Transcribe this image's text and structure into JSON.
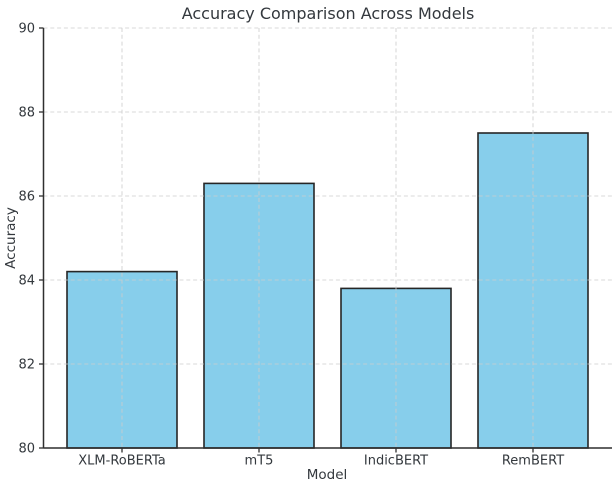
{
  "figure": {
    "background": "#ffffff"
  },
  "chart_data": {
    "type": "bar",
    "title": "Accuracy Comparison Across Models",
    "xlabel": "Model",
    "ylabel": "Accuracy",
    "categories": [
      "XLM-RoBERTa",
      "mT5",
      "IndicBERT",
      "RemBERT"
    ],
    "values": [
      84.2,
      86.3,
      83.8,
      87.5
    ],
    "ylim": [
      80,
      90
    ],
    "yticks": [
      80,
      82,
      84,
      86,
      88,
      90
    ],
    "grid": true,
    "grid_style": "dashed",
    "legend": "none",
    "colors": {
      "bar_fill": "#87CEEB",
      "bar_edge": "#262626",
      "grid": "#cccccc",
      "axis": "#2f2f2f",
      "text": "#33383d"
    }
  }
}
